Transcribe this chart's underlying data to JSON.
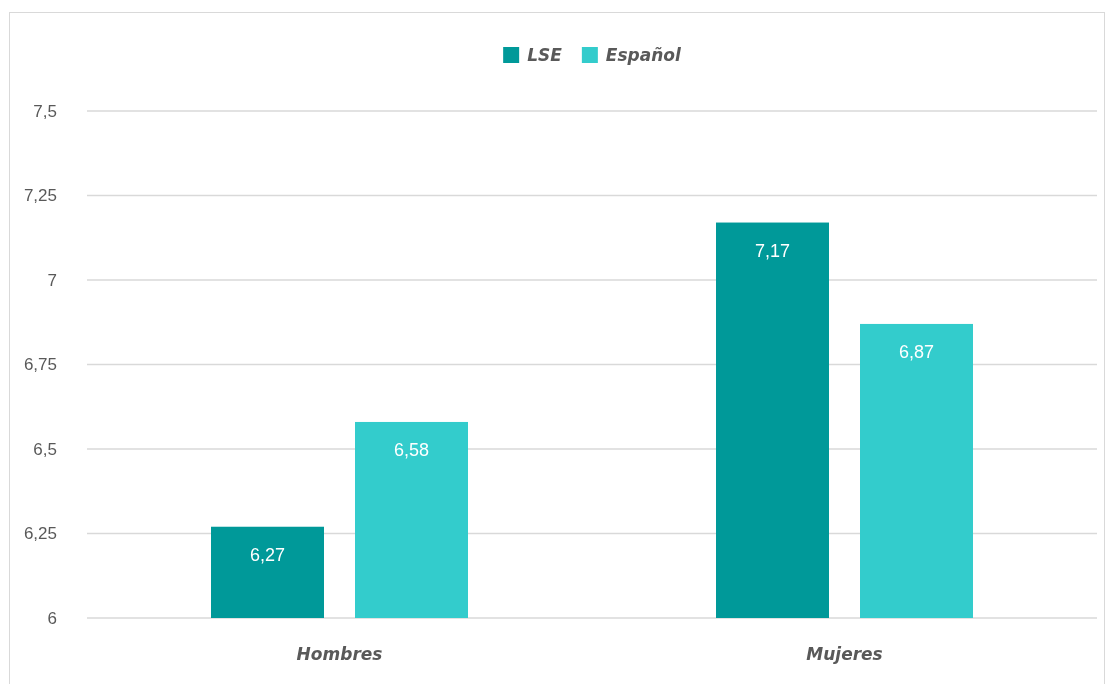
{
  "chart_data": {
    "type": "bar",
    "categories": [
      "Hombres",
      "Mujeres"
    ],
    "series": [
      {
        "name": "LSE",
        "color": "#009999",
        "values": [
          6.27,
          7.17
        ],
        "value_labels": [
          "6,27",
          "7,17"
        ]
      },
      {
        "name": "Español",
        "color": "#33cccc",
        "values": [
          6.58,
          6.87
        ],
        "value_labels": [
          "6,58",
          "6,87"
        ]
      }
    ],
    "ylim": [
      6,
      7.5
    ],
    "yticks": [
      {
        "value": 6,
        "label": "6"
      },
      {
        "value": 6.25,
        "label": "6,25"
      },
      {
        "value": 6.5,
        "label": "6,5"
      },
      {
        "value": 6.75,
        "label": "6,75"
      },
      {
        "value": 7,
        "label": "7"
      },
      {
        "value": 7.25,
        "label": "7,25"
      },
      {
        "value": 7.5,
        "label": "7,5"
      }
    ],
    "grid": "y",
    "legend": "top"
  }
}
